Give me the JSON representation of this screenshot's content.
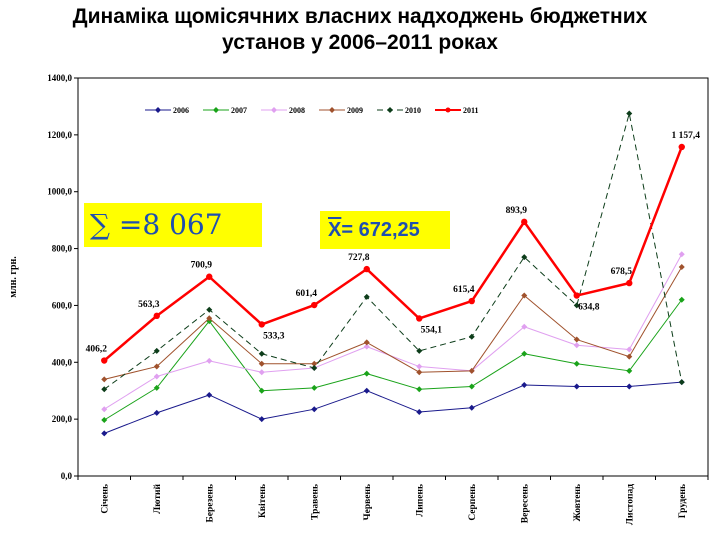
{
  "title": {
    "line1": "Динаміка щомісячних власних надходжень бюджетних",
    "line2": "установ у 2006–2011  роках"
  },
  "summary": {
    "sum_symbol": "∑",
    "sum_value": "=8 067",
    "mean_symbol": "X",
    "mean_value": "= 672,25"
  },
  "chart_data": {
    "type": "line",
    "ylabel": "млн. грн.",
    "ylim": [
      0,
      1400
    ],
    "yticks": [
      "0,0",
      "200,0",
      "400,0",
      "600,0",
      "800,0",
      "1000,0",
      "1200,0",
      "1400,0"
    ],
    "categories": [
      "Січень",
      "Лютий",
      "Березень",
      "Квітень",
      "Травень",
      "Червень",
      "Липень",
      "Серпень",
      "Вересень",
      "Жовтень",
      "Листопад",
      "Грудень"
    ],
    "legend_position": "top",
    "grid": false,
    "series": [
      {
        "name": "2006",
        "color": "#1a1a8c",
        "dash": "",
        "width": 1,
        "marker": "diamond",
        "values": [
          150,
          222,
          285,
          200,
          235,
          300,
          225,
          240,
          320,
          315,
          315,
          330
        ]
      },
      {
        "name": "2007",
        "color": "#1aa31a",
        "dash": "",
        "width": 1,
        "marker": "diamond",
        "values": [
          197,
          310,
          545,
          300,
          310,
          360,
          305,
          315,
          430,
          395,
          370,
          620
        ]
      },
      {
        "name": "2008",
        "color": "#e0a0f0",
        "dash": "",
        "width": 1,
        "marker": "diamond",
        "values": [
          235,
          350,
          405,
          365,
          380,
          455,
          385,
          370,
          525,
          460,
          445,
          780
        ]
      },
      {
        "name": "2009",
        "color": "#a0522d",
        "dash": "",
        "width": 1,
        "marker": "diamond",
        "values": [
          340,
          385,
          555,
          395,
          395,
          470,
          365,
          370,
          635,
          480,
          420,
          735
        ]
      },
      {
        "name": "2010",
        "color": "#0d3d1a",
        "dash": "6,4",
        "width": 1,
        "marker": "diamond",
        "values": [
          305,
          440,
          585,
          430,
          380,
          630,
          440,
          490,
          770,
          600,
          1275,
          330
        ]
      },
      {
        "name": "2011",
        "color": "#ff0000",
        "dash": "",
        "width": 2.5,
        "marker": "circle",
        "values": [
          406.2,
          563.3,
          700.9,
          533.3,
          601.4,
          727.8,
          554.1,
          615.4,
          893.9,
          634.8,
          678.5,
          1157.4
        ],
        "labels": [
          "406,2",
          "563,3",
          "700,9",
          "533,3",
          "601,4",
          "727,8",
          "554,1",
          "615,4",
          "893,9",
          "634,8",
          "678,5",
          "1 157,4"
        ]
      }
    ]
  }
}
